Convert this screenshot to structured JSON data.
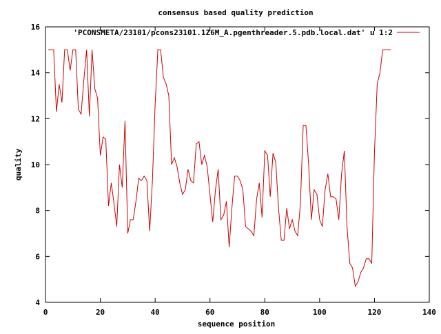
{
  "chart_data": {
    "type": "line",
    "title": "consensus based quality prediction",
    "xlabel": "sequence position",
    "ylabel": "quality",
    "xlim": [
      0,
      140
    ],
    "ylim": [
      4,
      16
    ],
    "xticks": [
      "0",
      "20",
      "40",
      "60",
      "80",
      "100",
      "120",
      "140"
    ],
    "yticks": [
      "4",
      "6",
      "8",
      "10",
      "12",
      "14",
      "16"
    ],
    "grid": false,
    "legend_position": "top-right",
    "series": [
      {
        "name": "'PCONSMETA/23101/pcons23101.1Z6M_A.pgenthreader.5.pdb.local.dat' u 1:2",
        "color": "#cc0000",
        "x": [
          1,
          2,
          3,
          4,
          5,
          6,
          7,
          8,
          9,
          10,
          11,
          12,
          13,
          14,
          15,
          16,
          17,
          18,
          19,
          20,
          21,
          22,
          23,
          24,
          25,
          26,
          27,
          28,
          29,
          30,
          31,
          32,
          33,
          34,
          35,
          36,
          37,
          38,
          39,
          40,
          41,
          42,
          43,
          44,
          45,
          46,
          47,
          48,
          49,
          50,
          51,
          52,
          53,
          54,
          55,
          56,
          57,
          58,
          59,
          60,
          61,
          62,
          63,
          64,
          65,
          66,
          67,
          68,
          69,
          70,
          71,
          72,
          73,
          74,
          75,
          76,
          77,
          78,
          79,
          80,
          81,
          82,
          83,
          84,
          85,
          86,
          87,
          88,
          89,
          90,
          91,
          92,
          93,
          94,
          95,
          96,
          97,
          98,
          99,
          100,
          101,
          102,
          103,
          104,
          105,
          106,
          107,
          108,
          109,
          110,
          111,
          112,
          113,
          114,
          115,
          116,
          117,
          118,
          119,
          120,
          121,
          122,
          123,
          124,
          125,
          126
        ],
        "values": [
          15.0,
          15.0,
          15.0,
          12.3,
          13.5,
          12.7,
          15.0,
          15.0,
          14.1,
          15.0,
          15.0,
          12.4,
          12.2,
          13.7,
          15.0,
          12.1,
          15.0,
          13.3,
          12.9,
          10.4,
          11.2,
          11.1,
          8.2,
          9.2,
          8.3,
          7.3,
          10.0,
          9.0,
          11.9,
          7.0,
          7.6,
          7.6,
          8.4,
          9.4,
          9.3,
          9.5,
          9.3,
          7.1,
          9.3,
          12.6,
          15.0,
          15.0,
          13.8,
          13.5,
          13.0,
          10.0,
          10.3,
          9.9,
          9.2,
          8.7,
          8.9,
          9.8,
          9.3,
          9.2,
          10.9,
          11.0,
          10.0,
          10.4,
          9.9,
          8.7,
          7.5,
          8.9,
          9.8,
          7.6,
          7.8,
          8.4,
          6.4,
          8.1,
          9.5,
          9.5,
          9.3,
          8.9,
          7.3,
          7.2,
          7.1,
          6.9,
          8.5,
          9.2,
          7.7,
          10.6,
          10.4,
          8.6,
          10.5,
          10.1,
          8.1,
          6.7,
          6.7,
          8.1,
          7.2,
          7.6,
          7.1,
          6.9,
          8.3,
          11.7,
          11.7,
          10.0,
          7.6,
          8.9,
          8.7,
          7.6,
          7.3,
          8.9,
          9.6,
          8.6,
          8.6,
          8.5,
          7.6,
          9.6,
          10.6,
          7.3,
          5.7,
          5.5,
          4.7,
          4.9,
          5.3,
          5.5,
          5.9,
          5.9,
          5.7,
          10.5,
          13.5,
          14.0,
          15.0,
          15.0,
          15.0,
          15.0
        ]
      }
    ]
  }
}
